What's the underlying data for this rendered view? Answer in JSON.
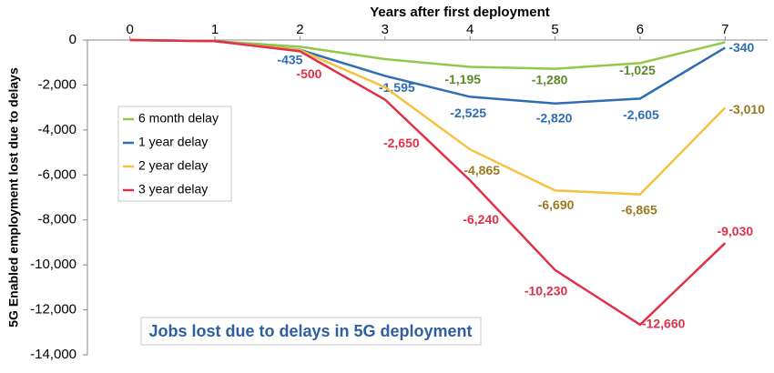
{
  "chart_data": {
    "type": "line",
    "xlabel": "Years after first deployment",
    "ylabel": "5G Enabled employment lost due to delays",
    "annotation": "Jobs lost due to delays in 5G deployment",
    "x": [
      0,
      1,
      2,
      3,
      4,
      5,
      6,
      7
    ],
    "xlim": [
      -0.5,
      7.5
    ],
    "xticks": [
      0,
      1,
      2,
      3,
      4,
      5,
      6,
      7
    ],
    "ylim": [
      -14000,
      0
    ],
    "yticks": [
      {
        "value": -14000,
        "label": "-14,000"
      },
      {
        "value": -12000,
        "label": "-12,000"
      },
      {
        "value": -10000,
        "label": "-10,000"
      },
      {
        "value": -8000,
        "label": "-8,000"
      },
      {
        "value": -6000,
        "label": "-6,000"
      },
      {
        "value": -4000,
        "label": "-4,000"
      },
      {
        "value": -2000,
        "label": "-2,000"
      },
      0
    ],
    "series": [
      {
        "name": "6 month delay",
        "color": "#92c84a",
        "values": [
          0,
          -50,
          -300,
          -850,
          -1195,
          -1280,
          -1025,
          -100
        ],
        "value_labels": [
          null,
          null,
          null,
          null,
          "-1,195",
          "-1,280",
          "-1,025",
          null
        ]
      },
      {
        "name": "1 year delay",
        "color": "#2e6db4",
        "values": [
          0,
          -50,
          -435,
          -1595,
          -2525,
          -2820,
          -2605,
          -340
        ],
        "value_labels": [
          null,
          null,
          "-435",
          "-1,595",
          "-2,525",
          "-2,820",
          "-2,605",
          "-340"
        ]
      },
      {
        "name": "2 year delay",
        "color": "#f5c242",
        "values": [
          0,
          -50,
          -450,
          -2100,
          -4865,
          -6690,
          -6865,
          -3010
        ],
        "value_labels": [
          null,
          null,
          null,
          null,
          "-4,865",
          "-6,690",
          "-6,865",
          "-3,010"
        ]
      },
      {
        "name": "3 year delay",
        "color": "#e0304a",
        "values": [
          0,
          -50,
          -500,
          -2650,
          -6240,
          -10230,
          -12660,
          -9030
        ],
        "value_labels": [
          null,
          null,
          "-500",
          "-2,650",
          "-6,240",
          "-10,230",
          "-12,660",
          "-9,030"
        ]
      }
    ],
    "legend": "left"
  }
}
